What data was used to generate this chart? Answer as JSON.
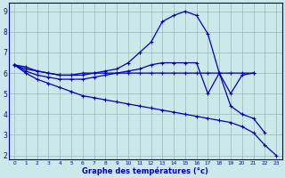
{
  "xlabel": "Graphe des températures (°c)",
  "hours": [
    0,
    1,
    2,
    3,
    4,
    5,
    6,
    7,
    8,
    9,
    10,
    11,
    12,
    13,
    14,
    15,
    16,
    17,
    18,
    19,
    20,
    21,
    22,
    23
  ],
  "curve_peak": [
    6.4,
    6.3,
    6.1,
    6.0,
    5.9,
    5.9,
    6.0,
    6.0,
    6.1,
    6.2,
    6.5,
    7.0,
    7.5,
    8.5,
    8.8,
    9.0,
    8.8,
    7.9,
    6.0,
    5.0,
    5.9,
    6.0,
    null,
    null
  ],
  "curve_flat": [
    6.4,
    6.2,
    6.1,
    6.0,
    5.9,
    5.9,
    5.9,
    6.0,
    6.0,
    6.0,
    6.0,
    6.0,
    6.0,
    6.0,
    6.0,
    6.0,
    6.0,
    6.0,
    6.0,
    6.0,
    6.0,
    6.0,
    null,
    null
  ],
  "curve_decline": [
    6.4,
    6.0,
    5.7,
    5.5,
    5.3,
    5.1,
    4.9,
    4.8,
    4.7,
    4.6,
    4.5,
    4.4,
    4.3,
    4.2,
    4.1,
    4.0,
    3.9,
    3.8,
    3.7,
    3.6,
    3.4,
    3.1,
    2.5,
    2.0
  ],
  "curve_mid": [
    6.4,
    6.1,
    5.9,
    5.8,
    5.7,
    5.7,
    5.7,
    5.8,
    5.9,
    6.0,
    6.1,
    6.2,
    6.4,
    6.5,
    6.5,
    6.5,
    6.5,
    5.0,
    6.0,
    4.4,
    4.0,
    3.8,
    3.1,
    null
  ],
  "line_color": "#0000bb",
  "bg_color": "#cce8e8",
  "grid_color": "#99bbbb",
  "ylim": [
    1.8,
    9.4
  ],
  "xlim": [
    0,
    23
  ],
  "yticks": [
    2,
    3,
    4,
    5,
    6,
    7,
    8,
    9
  ],
  "xticks": [
    0,
    1,
    2,
    3,
    4,
    5,
    6,
    7,
    8,
    9,
    10,
    11,
    12,
    13,
    14,
    15,
    16,
    17,
    18,
    19,
    20,
    21,
    22,
    23
  ]
}
